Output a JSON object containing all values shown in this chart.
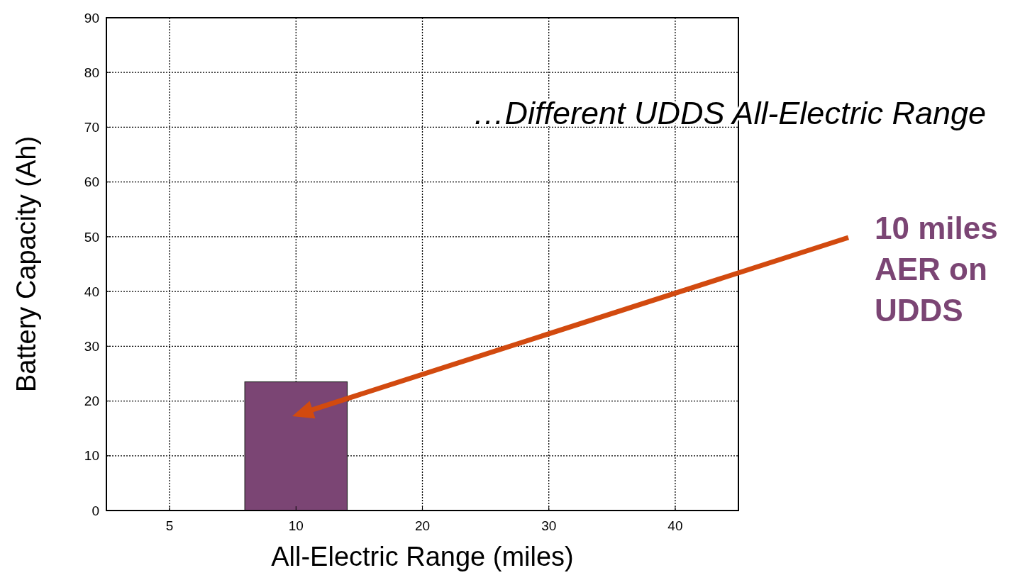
{
  "chart_data": {
    "type": "bar",
    "xlabel": "All-Electric Range (miles)",
    "ylabel": "Battery Capacity (Ah)",
    "categories": [
      "5",
      "10",
      "20",
      "30",
      "40"
    ],
    "values": [
      null,
      23.5,
      null,
      null,
      null
    ],
    "color": "#7b4574",
    "ylim": [
      0,
      90
    ],
    "yticks": [
      0,
      10,
      20,
      30,
      40,
      50,
      60,
      70,
      80,
      90
    ],
    "grid": true,
    "annotations": [
      "…Different UDDS All-Electric Range",
      "10 miles AER on UDDS"
    ]
  }
}
